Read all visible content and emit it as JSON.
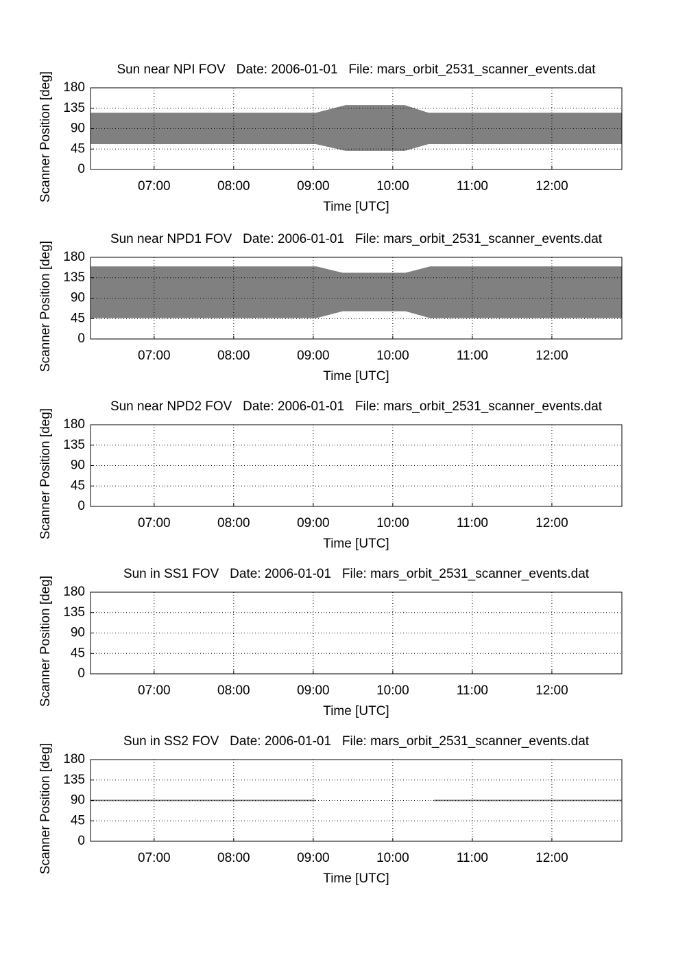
{
  "chart_data": [
    {
      "type": "area",
      "title": "Sun near NPI FOV   Date: 2006-01-01   File: mars_orbit_2531_scanner_events.dat",
      "xlabel": "Time [UTC]",
      "ylabel": "Scanner Position [deg]",
      "x": [
        6.2,
        9.03,
        9.41,
        10.15,
        10.45,
        12.88
      ],
      "upper": [
        125,
        125,
        142,
        142,
        125,
        125
      ],
      "lower": [
        56,
        56,
        41,
        41,
        56,
        56
      ],
      "color": "#808080",
      "xlim": [
        6.2,
        12.88
      ],
      "ylim": [
        0,
        180
      ],
      "xticks": [
        {
          "value": 7,
          "label": "07:00"
        },
        {
          "value": 8,
          "label": "08:00"
        },
        {
          "value": 9,
          "label": "09:00"
        },
        {
          "value": 10,
          "label": "10:00"
        },
        {
          "value": 11,
          "label": "11:00"
        },
        {
          "value": 12,
          "label": "12:00"
        }
      ],
      "yticks": [
        0,
        45,
        90,
        135,
        180
      ],
      "grid": true
    },
    {
      "type": "area",
      "title": "Sun near NPD1 FOV   Date: 2006-01-01   File: mars_orbit_2531_scanner_events.dat",
      "xlabel": "Time [UTC]",
      "ylabel": "Scanner Position [deg]",
      "x": [
        6.2,
        9.04,
        9.37,
        10.16,
        10.47,
        12.88
      ],
      "upper": [
        160,
        160,
        146,
        146,
        160,
        160
      ],
      "lower": [
        46,
        46,
        61,
        61,
        46,
        46
      ],
      "color": "#808080",
      "xlim": [
        6.2,
        12.88
      ],
      "ylim": [
        0,
        180
      ],
      "xticks": [
        {
          "value": 7,
          "label": "07:00"
        },
        {
          "value": 8,
          "label": "08:00"
        },
        {
          "value": 9,
          "label": "09:00"
        },
        {
          "value": 10,
          "label": "10:00"
        },
        {
          "value": 11,
          "label": "11:00"
        },
        {
          "value": 12,
          "label": "12:00"
        }
      ],
      "yticks": [
        0,
        45,
        90,
        135,
        180
      ],
      "grid": true
    },
    {
      "type": "line",
      "title": "Sun near NPD2 FOV   Date: 2006-01-01   File: mars_orbit_2531_scanner_events.dat",
      "xlabel": "Time [UTC]",
      "ylabel": "Scanner Position [deg]",
      "x": [],
      "values": [],
      "color": "#808080",
      "xlim": [
        6.2,
        12.88
      ],
      "ylim": [
        0,
        180
      ],
      "xticks": [
        {
          "value": 7,
          "label": "07:00"
        },
        {
          "value": 8,
          "label": "08:00"
        },
        {
          "value": 9,
          "label": "09:00"
        },
        {
          "value": 10,
          "label": "10:00"
        },
        {
          "value": 11,
          "label": "11:00"
        },
        {
          "value": 12,
          "label": "12:00"
        }
      ],
      "yticks": [
        0,
        45,
        90,
        135,
        180
      ],
      "grid": true
    },
    {
      "type": "line",
      "title": "Sun in SS1 FOV   Date: 2006-01-01   File: mars_orbit_2531_scanner_events.dat",
      "xlabel": "Time [UTC]",
      "ylabel": "Scanner Position [deg]",
      "x": [],
      "values": [],
      "color": "#808080",
      "xlim": [
        6.2,
        12.88
      ],
      "ylim": [
        0,
        180
      ],
      "xticks": [
        {
          "value": 7,
          "label": "07:00"
        },
        {
          "value": 8,
          "label": "08:00"
        },
        {
          "value": 9,
          "label": "09:00"
        },
        {
          "value": 10,
          "label": "10:00"
        },
        {
          "value": 11,
          "label": "11:00"
        },
        {
          "value": 12,
          "label": "12:00"
        }
      ],
      "yticks": [
        0,
        45,
        90,
        135,
        180
      ],
      "grid": true
    },
    {
      "type": "line",
      "title": "Sun in SS2 FOV   Date: 2006-01-01   File: mars_orbit_2531_scanner_events.dat",
      "xlabel": "Time [UTC]",
      "ylabel": "Scanner Position [deg]",
      "x": [
        6.2,
        9.03,
        null,
        10.52,
        12.88
      ],
      "values": [
        90,
        90,
        null,
        90,
        90
      ],
      "color": "#808080",
      "xlim": [
        6.2,
        12.88
      ],
      "ylim": [
        0,
        180
      ],
      "xticks": [
        {
          "value": 7,
          "label": "07:00"
        },
        {
          "value": 8,
          "label": "08:00"
        },
        {
          "value": 9,
          "label": "09:00"
        },
        {
          "value": 10,
          "label": "10:00"
        },
        {
          "value": 11,
          "label": "11:00"
        },
        {
          "value": 12,
          "label": "12:00"
        }
      ],
      "yticks": [
        0,
        45,
        90,
        135,
        180
      ],
      "grid": true
    }
  ]
}
